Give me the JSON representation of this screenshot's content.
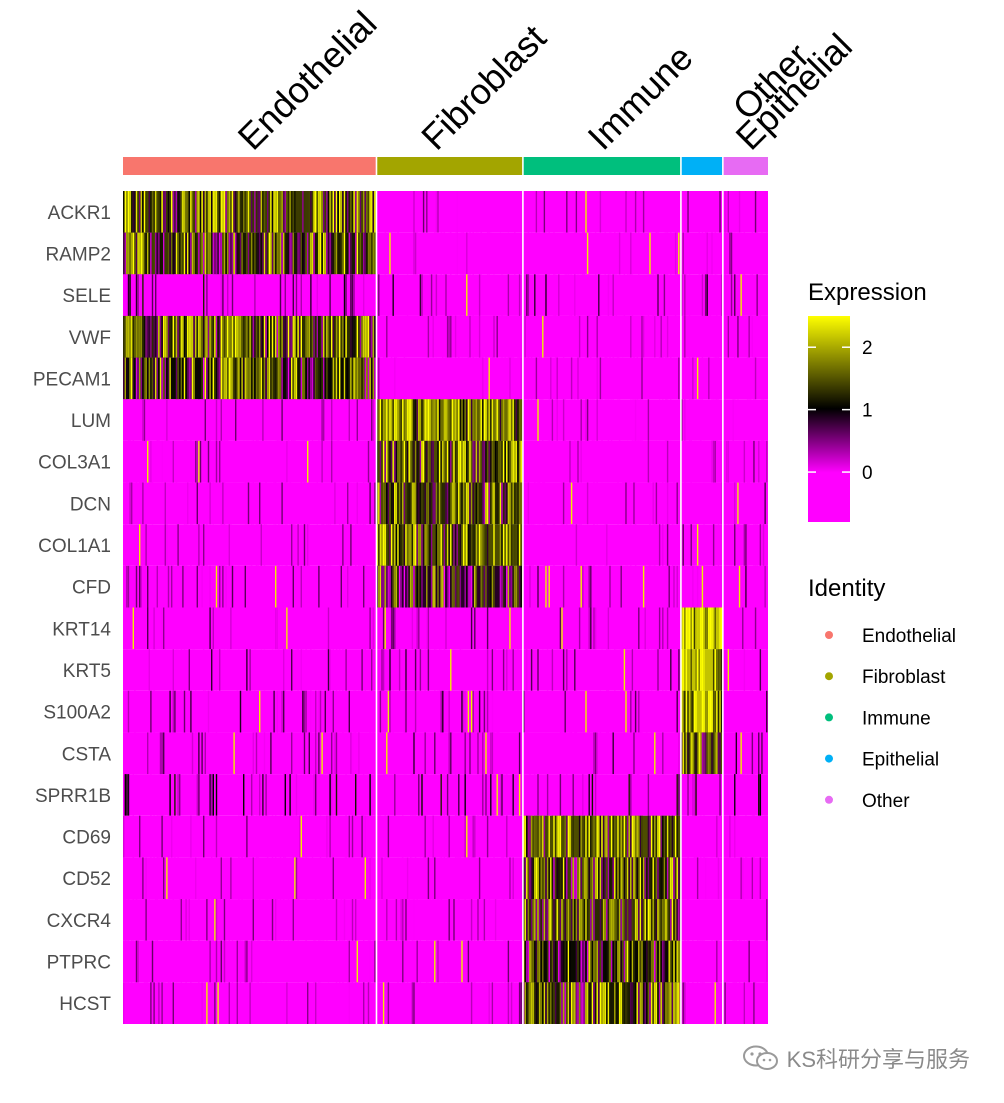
{
  "chart_data": {
    "type": "heatmap",
    "title": "",
    "group_labels": [
      "Endothelial",
      "Fibroblast",
      "Immune",
      "Epithelial",
      "Other"
    ],
    "group_colors": [
      "#F8766D",
      "#A3A500",
      "#00BF7D",
      "#00B0F6",
      "#E76BF3"
    ],
    "group_cell_fraction": [
      0.393,
      0.227,
      0.245,
      0.065,
      0.07
    ],
    "genes": [
      "ACKR1",
      "RAMP2",
      "SELE",
      "VWF",
      "PECAM1",
      "LUM",
      "COL3A1",
      "DCN",
      "COL1A1",
      "CFD",
      "KRT14",
      "KRT5",
      "S100A2",
      "CSTA",
      "SPRR1B",
      "CD69",
      "CD52",
      "CXCR4",
      "PTPRC",
      "HCST"
    ],
    "mean_expression": [
      [
        1.6,
        -0.4,
        -0.4,
        -0.4,
        -0.3
      ],
      [
        1.4,
        -0.7,
        -0.7,
        -0.6,
        -0.5
      ],
      [
        0.2,
        -0.1,
        -0.1,
        -0.1,
        -0.1
      ],
      [
        1.5,
        -0.5,
        -0.5,
        -0.5,
        -0.4
      ],
      [
        1.3,
        -0.6,
        -0.5,
        -0.6,
        -0.4
      ],
      [
        -0.4,
        1.9,
        -0.4,
        -0.2,
        -0.3
      ],
      [
        -0.4,
        1.7,
        -0.4,
        -0.2,
        -0.3
      ],
      [
        -0.4,
        1.5,
        -0.4,
        -0.2,
        -0.2
      ],
      [
        -0.4,
        1.7,
        -0.4,
        -0.3,
        -0.3
      ],
      [
        -0.3,
        1.1,
        -0.3,
        -0.3,
        0.0
      ],
      [
        -0.2,
        -0.2,
        -0.2,
        2.4,
        -0.1
      ],
      [
        -0.1,
        -0.1,
        -0.1,
        2.4,
        -0.1
      ],
      [
        -0.1,
        -0.1,
        -0.1,
        2.4,
        -0.1
      ],
      [
        -0.1,
        -0.1,
        -0.1,
        1.6,
        -0.1
      ],
      [
        0.2,
        0.2,
        0.2,
        0.2,
        0.2
      ],
      [
        -0.4,
        -0.4,
        1.7,
        -0.4,
        -0.4
      ],
      [
        -0.4,
        -0.4,
        1.4,
        -0.4,
        -0.4
      ],
      [
        -0.4,
        -0.4,
        1.5,
        -0.4,
        -0.4
      ],
      [
        -0.4,
        -0.4,
        1.3,
        -0.4,
        -0.4
      ],
      [
        -0.4,
        -0.4,
        1.4,
        -0.4,
        -0.4
      ]
    ],
    "colorbar": {
      "title": "Expression",
      "min": -0.8,
      "max": 2.5,
      "ticks": [
        {
          "value": 2,
          "label": "2"
        },
        {
          "value": 1,
          "label": "1"
        },
        {
          "value": 0,
          "label": "0"
        }
      ],
      "colors": [
        "#FF00FF",
        "#000000",
        "#FFFF00"
      ]
    },
    "legend": {
      "title": "Identity",
      "items": [
        "Endothelial",
        "Fibroblast",
        "Immune",
        "Epithelial",
        "Other"
      ]
    }
  },
  "watermark": {
    "text": "KS科研分享与服务",
    "icon": "wechat-icon"
  }
}
